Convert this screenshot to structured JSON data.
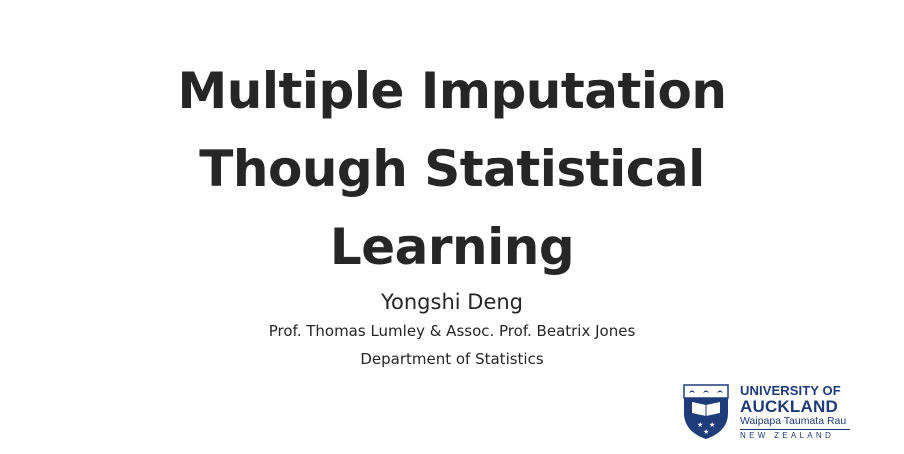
{
  "slide": {
    "title_lines": [
      "Multiple Imputation",
      "Though Statistical",
      "Learning"
    ],
    "author": "Yongshi Deng",
    "supervisors": "Prof. Thomas Lumley & Assoc. Prof. Beatrix Jones",
    "department": "Department of Statistics"
  },
  "logo": {
    "line1": "UNIVERSITY OF",
    "line2": "AUCKLAND",
    "line3": "Waipapa Taumata Rau",
    "line4": "NEW ZEALAND",
    "icon": "university-crest-icon"
  },
  "colors": {
    "text": "#262626",
    "brand": "#1f3c7a",
    "background": "#ffffff"
  }
}
